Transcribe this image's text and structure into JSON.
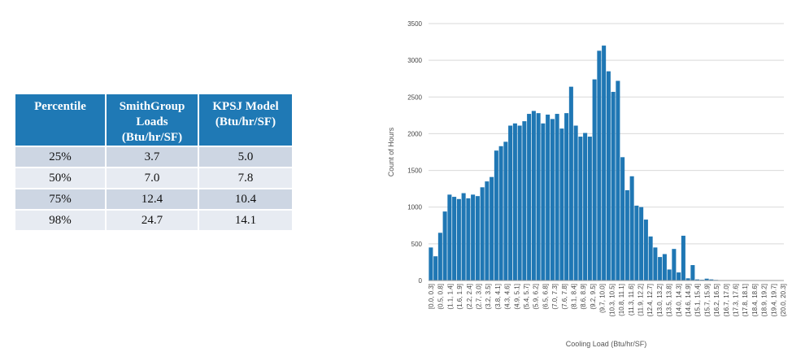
{
  "table": {
    "headers": [
      "Percentile",
      "SmithGroup Loads (Btu/hr/SF)",
      "KPSJ Model (Btu/hr/SF)"
    ],
    "header_lines": [
      [
        "Percentile"
      ],
      [
        "SmithGroup",
        "Loads",
        "(Btu/hr/SF)"
      ],
      [
        "KPSJ Model",
        "(Btu/hr/SF)"
      ]
    ],
    "rows": [
      [
        "25%",
        "3.7",
        "5.0"
      ],
      [
        "50%",
        "7.0",
        "7.8"
      ],
      [
        "75%",
        "12.4",
        "10.4"
      ],
      [
        "98%",
        "24.7",
        "14.1"
      ]
    ]
  },
  "chart_data": {
    "type": "bar",
    "xlabel": "Cooling Load (Btu/hr/SF)",
    "ylabel": "Count of Hours",
    "ylim": [
      0,
      3500
    ],
    "yticks": [
      0,
      500,
      1000,
      1500,
      2000,
      2500,
      3000,
      3500
    ],
    "grid": true,
    "bar_color": "#1f77b4",
    "tick_labels_shown": [
      "[0.0, 0.3]",
      "(0.5, 0.8]",
      "(1.1, 1.4]",
      "(1.6, 1.9]",
      "(2.2, 2.4]",
      "(2.7, 3.0]",
      "(3.2, 3.5]",
      "(3.8, 4.1]",
      "(4.3, 4.6]",
      "(4.9, 5.1]",
      "(5.4, 5.7]",
      "(5.9, 6.2]",
      "(6.5, 6.8]",
      "(7.0, 7.3]",
      "(7.6, 7.8]",
      "(8.1, 8.4]",
      "(8.6, 8.9]",
      "(9.2, 9.5]",
      "(9.7, 10.0]",
      "(10.3, 10.5]",
      "(10.8, 11.1]",
      "(11.3, 11.6]",
      "(11.9, 12.2]",
      "(12.4, 12.7]",
      "(13.0, 13.2]",
      "(13.5, 13.8]",
      "(14.0, 14.3]",
      "(14.6, 14.9]",
      "(15.1, 15.4]",
      "(15.7, 15.9]",
      "(16.2, 16.5]",
      "(16.7, 17.0]",
      "(17.3, 17.6]",
      "(17.8, 18.1]",
      "(18.4, 18.6]",
      "(18.9, 19.2]",
      "(19.4, 19.7]",
      "(20.0, 20.3]"
    ],
    "values": [
      450,
      330,
      650,
      940,
      1170,
      1140,
      1110,
      1190,
      1120,
      1170,
      1150,
      1270,
      1350,
      1410,
      1770,
      1830,
      1890,
      2110,
      2140,
      2110,
      2170,
      2270,
      2310,
      2280,
      2140,
      2260,
      2200,
      2270,
      2070,
      2280,
      2640,
      2110,
      1960,
      2010,
      1960,
      2740,
      3130,
      3200,
      2850,
      2570,
      2720,
      1680,
      1230,
      1420,
      1020,
      1000,
      830,
      600,
      450,
      320,
      360,
      150,
      430,
      110,
      610,
      30,
      210,
      15,
      10,
      25,
      15,
      8,
      5,
      3,
      2,
      2,
      1,
      1,
      1,
      1,
      1,
      1,
      1,
      1,
      1,
      1
    ]
  }
}
